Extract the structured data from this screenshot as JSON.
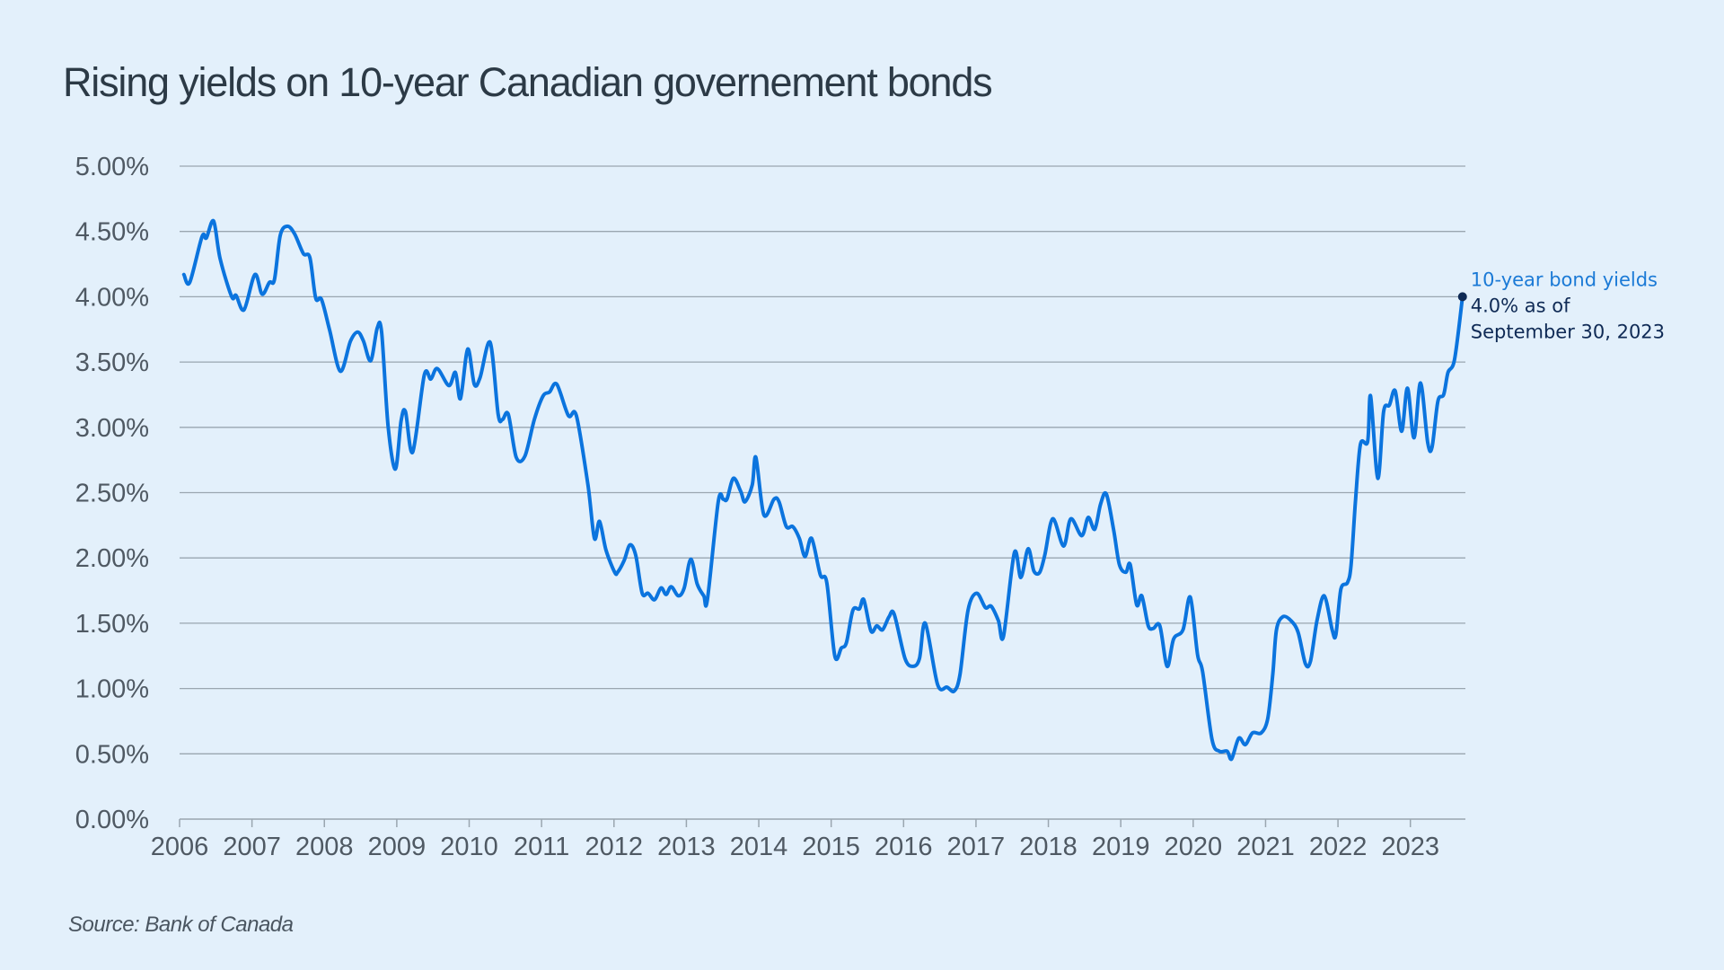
{
  "chart_data": {
    "type": "line",
    "title": "Rising yields on 10-year Canadian governement bonds",
    "xlabel": "",
    "ylabel": "",
    "source": "Source: Bank of Canada",
    "xlim": [
      2006,
      2023.76
    ],
    "ylim": [
      0,
      5
    ],
    "grid": true,
    "y_ticks": [
      0,
      0.5,
      1,
      1.5,
      2,
      2.5,
      3,
      3.5,
      4,
      4.5,
      5
    ],
    "y_tick_labels": [
      "0.00%",
      "0.50%",
      "1.00%",
      "1.50%",
      "2.00%",
      "2.50%",
      "3.00%",
      "3.50%",
      "4.00%",
      "4.50%",
      "5.00%"
    ],
    "x_ticks": [
      2006,
      2007,
      2008,
      2009,
      2010,
      2011,
      2012,
      2013,
      2014,
      2015,
      2016,
      2017,
      2018,
      2019,
      2020,
      2021,
      2022,
      2023
    ],
    "x_tick_labels": [
      "2006",
      "2007",
      "2008",
      "2009",
      "2010",
      "2011",
      "2012",
      "2013",
      "2014",
      "2015",
      "2016",
      "2017",
      "2018",
      "2019",
      "2020",
      "2021",
      "2022",
      "2023"
    ],
    "colors": {
      "series": "#0b74de",
      "endpoint": "#0f2a55",
      "label": "#1b7ad6",
      "annotation": "#0f2a55"
    },
    "series": [
      {
        "name": "10-year bond yields",
        "x": [
          2006.06,
          2006.14,
          2006.31,
          2006.37,
          2006.47,
          2006.56,
          2006.72,
          2006.78,
          2006.89,
          2007.04,
          2007.14,
          2007.24,
          2007.31,
          2007.39,
          2007.49,
          2007.59,
          2007.71,
          2007.8,
          2007.88,
          2007.96,
          2008.07,
          2008.22,
          2008.36,
          2008.46,
          2008.54,
          2008.64,
          2008.73,
          2008.79,
          2008.88,
          2008.98,
          2009.06,
          2009.12,
          2009.22,
          2009.38,
          2009.47,
          2009.56,
          2009.72,
          2009.81,
          2009.88,
          2009.98,
          2010.07,
          2010.15,
          2010.29,
          2010.4,
          2010.46,
          2010.54,
          2010.65,
          2010.77,
          2010.9,
          2011.02,
          2011.11,
          2011.21,
          2011.37,
          2011.48,
          2011.64,
          2011.73,
          2011.8,
          2011.89,
          2012.01,
          2012.05,
          2012.14,
          2012.22,
          2012.3,
          2012.39,
          2012.47,
          2012.56,
          2012.65,
          2012.72,
          2012.79,
          2012.89,
          2012.97,
          2013.06,
          2013.15,
          2013.24,
          2013.29,
          2013.44,
          2013.51,
          2013.56,
          2013.65,
          2013.75,
          2013.81,
          2013.91,
          2013.96,
          2014.07,
          2014.21,
          2014.28,
          2014.38,
          2014.47,
          2014.56,
          2014.64,
          2014.73,
          2014.85,
          2014.94,
          2015.05,
          2015.14,
          2015.21,
          2015.3,
          2015.39,
          2015.45,
          2015.55,
          2015.63,
          2015.71,
          2015.8,
          2015.87,
          2016.02,
          2016.13,
          2016.22,
          2016.3,
          2016.47,
          2016.6,
          2016.7,
          2016.78,
          2016.89,
          2017.01,
          2017.13,
          2017.21,
          2017.31,
          2017.38,
          2017.53,
          2017.62,
          2017.72,
          2017.8,
          2017.88,
          2017.95,
          2018.06,
          2018.21,
          2018.31,
          2018.46,
          2018.55,
          2018.64,
          2018.72,
          2018.8,
          2018.9,
          2018.98,
          2019.07,
          2019.13,
          2019.22,
          2019.29,
          2019.38,
          2019.45,
          2019.54,
          2019.64,
          2019.73,
          2019.86,
          2019.96,
          2020.06,
          2020.13,
          2020.26,
          2020.36,
          2020.47,
          2020.53,
          2020.63,
          2020.72,
          2020.82,
          2020.94,
          2021.03,
          2021.1,
          2021.15,
          2021.24,
          2021.35,
          2021.45,
          2021.55,
          2021.62,
          2021.71,
          2021.81,
          2021.92,
          2021.97,
          2022.04,
          2022.13,
          2022.18,
          2022.24,
          2022.31,
          2022.41,
          2022.45,
          2022.55,
          2022.63,
          2022.71,
          2022.79,
          2022.88,
          2022.96,
          2023.05,
          2023.14,
          2023.24,
          2023.3,
          2023.38,
          2023.46,
          2023.52,
          2023.61,
          2023.72
        ],
        "values": [
          4.17,
          4.11,
          4.46,
          4.45,
          4.58,
          4.29,
          4.0,
          4.01,
          3.9,
          4.17,
          4.02,
          4.11,
          4.13,
          4.47,
          4.54,
          4.48,
          4.33,
          4.3,
          3.99,
          3.98,
          3.75,
          3.43,
          3.66,
          3.73,
          3.66,
          3.51,
          3.76,
          3.73,
          3.01,
          2.68,
          3.05,
          3.12,
          2.81,
          3.4,
          3.37,
          3.45,
          3.32,
          3.42,
          3.22,
          3.6,
          3.33,
          3.38,
          3.65,
          3.1,
          3.06,
          3.1,
          2.77,
          2.78,
          3.06,
          3.24,
          3.27,
          3.33,
          3.09,
          3.09,
          2.56,
          2.15,
          2.28,
          2.06,
          1.89,
          1.89,
          1.98,
          2.1,
          2.02,
          1.73,
          1.73,
          1.68,
          1.77,
          1.72,
          1.78,
          1.71,
          1.77,
          1.99,
          1.8,
          1.71,
          1.68,
          2.43,
          2.45,
          2.45,
          2.61,
          2.51,
          2.43,
          2.56,
          2.77,
          2.33,
          2.45,
          2.43,
          2.24,
          2.24,
          2.15,
          2.01,
          2.15,
          1.87,
          1.81,
          1.25,
          1.31,
          1.35,
          1.6,
          1.61,
          1.68,
          1.44,
          1.48,
          1.45,
          1.55,
          1.57,
          1.23,
          1.17,
          1.23,
          1.5,
          1.03,
          1.01,
          0.98,
          1.11,
          1.6,
          1.73,
          1.62,
          1.63,
          1.52,
          1.4,
          2.04,
          1.85,
          2.07,
          1.9,
          1.89,
          2.02,
          2.3,
          2.09,
          2.3,
          2.17,
          2.31,
          2.22,
          2.41,
          2.49,
          2.22,
          1.95,
          1.89,
          1.95,
          1.64,
          1.71,
          1.48,
          1.46,
          1.48,
          1.17,
          1.38,
          1.45,
          1.7,
          1.26,
          1.13,
          0.61,
          0.52,
          0.52,
          0.46,
          0.62,
          0.57,
          0.66,
          0.66,
          0.77,
          1.11,
          1.45,
          1.55,
          1.52,
          1.43,
          1.19,
          1.21,
          1.52,
          1.71,
          1.45,
          1.41,
          1.76,
          1.81,
          1.94,
          2.42,
          2.87,
          2.89,
          3.24,
          2.61,
          3.12,
          3.17,
          3.28,
          2.97,
          3.3,
          2.92,
          3.34,
          2.88,
          2.85,
          3.2,
          3.25,
          3.42,
          3.52,
          4.0
        ]
      }
    ],
    "annotations": {
      "series_label": "10-year bond yields",
      "value_line": "4.0% as of",
      "date_line": "September 30, 2023",
      "endpoint": {
        "x": 2023.72,
        "y": 4.0
      }
    }
  }
}
